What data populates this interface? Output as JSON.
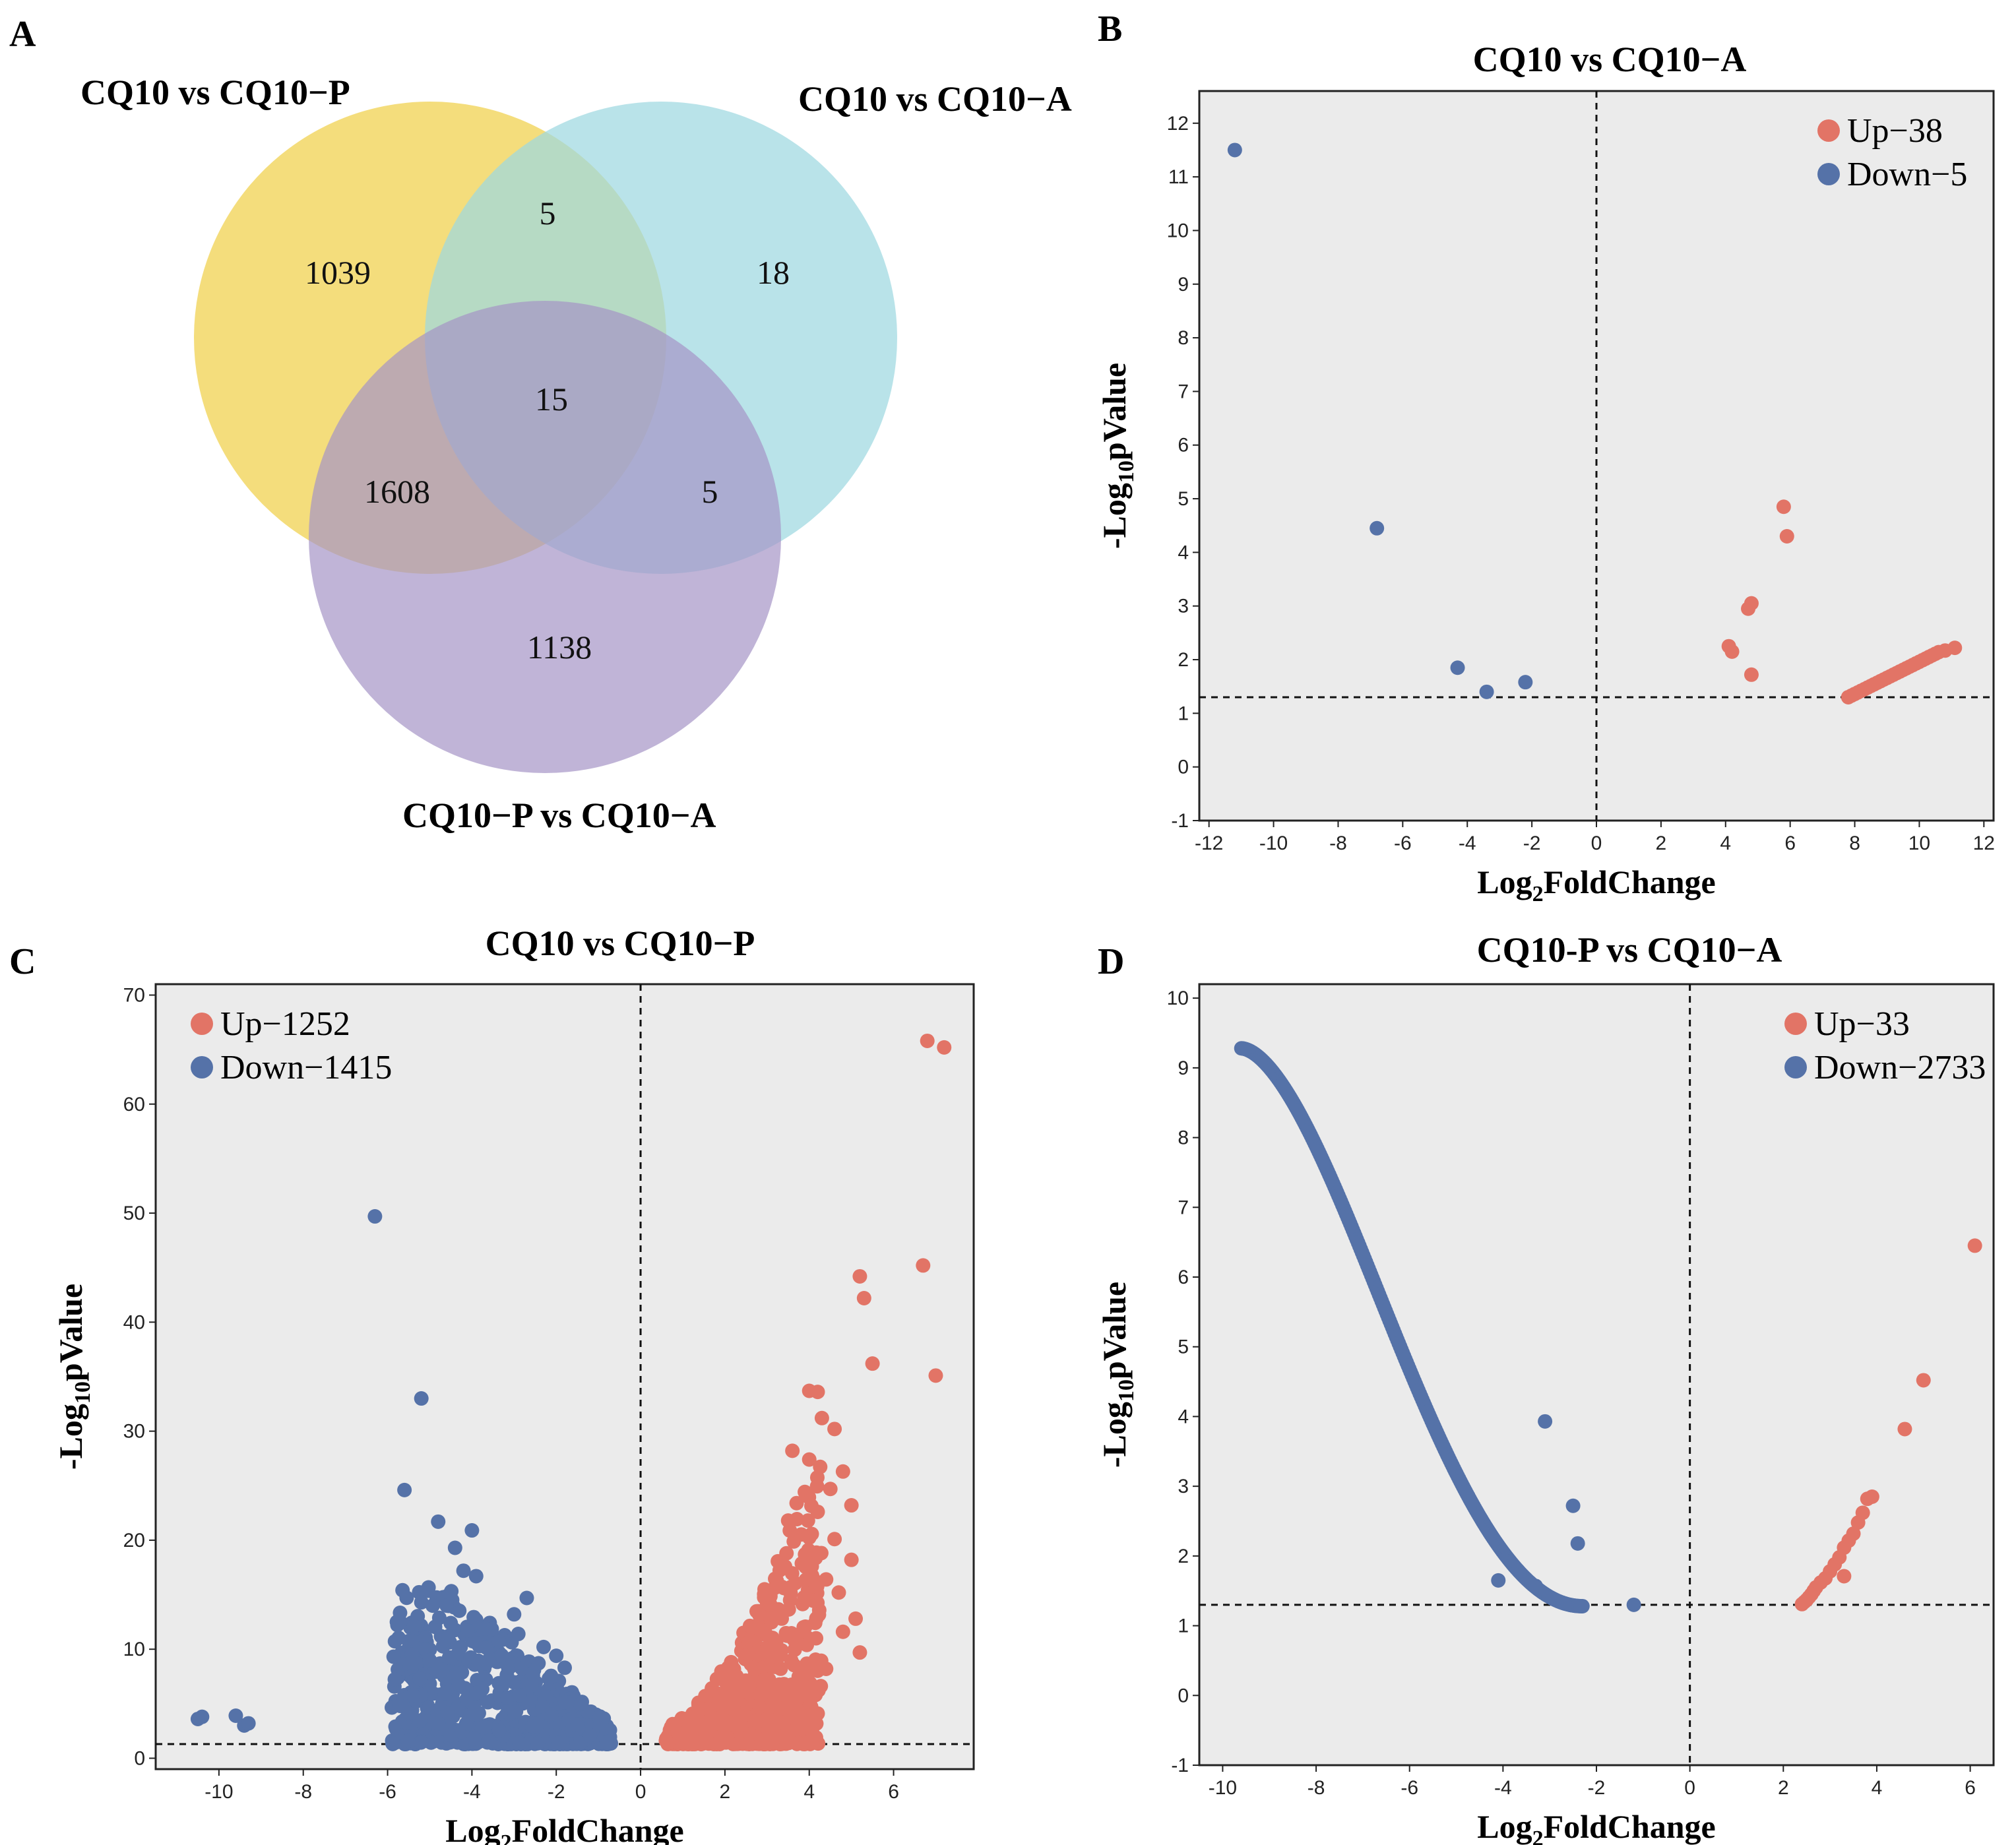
{
  "colors": {
    "up": "#E27466",
    "down": "#5572A8",
    "plot_bg": "#EBEBEB",
    "venn_yellow": "#F2D765",
    "venn_cyan": "#9ED8E0",
    "venn_purple": "#A594C6"
  },
  "panels": {
    "a": {
      "letter": "A"
    },
    "b": {
      "letter": "B"
    },
    "c": {
      "letter": "C"
    },
    "d": {
      "letter": "D"
    }
  },
  "venn": {
    "set_p": "CQ10 vs CQ10−P",
    "set_a": "CQ10 vs CQ10−A",
    "set_pa": "CQ10−P vs CQ10−A",
    "regions": {
      "only_p": "1039",
      "p_and_a": "5",
      "only_a": "18",
      "all": "15",
      "p_and_pa": "1608",
      "a_and_pa": "5",
      "only_pa": "1138"
    }
  },
  "axis": {
    "ylabel_main": "-Log",
    "ylabel_sub": "10",
    "ylabel_tail": "pValue",
    "xlabel_main": "Log",
    "xlabel_sub": "2",
    "xlabel_tail": "FoldChange"
  },
  "chart_data": [
    {
      "id": "b",
      "type": "scatter",
      "title": "CQ10 vs CQ10−A",
      "xlabel": "Log2FoldChange",
      "ylabel": "-Log10pValue",
      "xlim": [
        -12.3,
        12.3
      ],
      "ylim": [
        -1,
        12.6
      ],
      "xticks": [
        -12,
        -10,
        -8,
        -6,
        -4,
        -2,
        0,
        2,
        4,
        6,
        8,
        10,
        12
      ],
      "yticks": [
        -1,
        0,
        1,
        2,
        3,
        4,
        5,
        6,
        7,
        8,
        9,
        10,
        11,
        12
      ],
      "threshold_x": 0,
      "threshold_y": 1.3,
      "legend_position": "top-right",
      "series": [
        {
          "name": "Up−38",
          "color": "#E27466",
          "points": [
            [
              5.8,
              4.85
            ],
            [
              5.9,
              4.3
            ],
            [
              4.8,
              3.05
            ],
            [
              4.7,
              2.95
            ],
            [
              4.1,
              2.25
            ],
            [
              4.2,
              2.15
            ],
            [
              4.8,
              1.72
            ],
            [
              7.8,
              1.3
            ],
            [
              7.9,
              1.33
            ],
            [
              8.0,
              1.36
            ],
            [
              8.1,
              1.39
            ],
            [
              8.2,
              1.42
            ],
            [
              8.3,
              1.45
            ],
            [
              8.4,
              1.48
            ],
            [
              8.5,
              1.51
            ],
            [
              8.6,
              1.54
            ],
            [
              8.7,
              1.57
            ],
            [
              8.8,
              1.6
            ],
            [
              8.9,
              1.63
            ],
            [
              9.0,
              1.66
            ],
            [
              9.1,
              1.69
            ],
            [
              9.2,
              1.72
            ],
            [
              9.3,
              1.75
            ],
            [
              9.4,
              1.78
            ],
            [
              9.5,
              1.81
            ],
            [
              9.6,
              1.84
            ],
            [
              9.7,
              1.87
            ],
            [
              9.8,
              1.9
            ],
            [
              9.9,
              1.93
            ],
            [
              10.0,
              1.96
            ],
            [
              10.1,
              1.99
            ],
            [
              10.2,
              2.02
            ],
            [
              10.3,
              2.05
            ],
            [
              10.4,
              2.08
            ],
            [
              10.5,
              2.11
            ],
            [
              10.6,
              2.14
            ],
            [
              10.8,
              2.17
            ],
            [
              11.1,
              2.22
            ]
          ]
        },
        {
          "name": "Down−5",
          "color": "#5572A8",
          "points": [
            [
              -11.2,
              11.5
            ],
            [
              -6.8,
              4.45
            ],
            [
              -4.3,
              1.85
            ],
            [
              -3.4,
              1.4
            ],
            [
              -2.2,
              1.58
            ]
          ]
        }
      ]
    },
    {
      "id": "c",
      "type": "scatter",
      "title": "CQ10 vs CQ10−P",
      "xlabel": "Log2FoldChange",
      "ylabel": "-Log10pValue",
      "xlim": [
        -11.5,
        7.9
      ],
      "ylim": [
        -1,
        71
      ],
      "xticks": [
        -10,
        -8,
        -6,
        -4,
        -2,
        0,
        2,
        4,
        6
      ],
      "yticks": [
        0,
        10,
        20,
        30,
        40,
        50,
        60,
        70
      ],
      "threshold_x": 0,
      "threshold_y": 1.3,
      "legend_position": "top-left",
      "series": [
        {
          "name": "Up−1252",
          "color": "#E27466",
          "cluster_x": [
            0.6,
            4.4
          ],
          "cluster_y_max_at_x": [
            [
              0.6,
              2
            ],
            [
              2,
              10
            ],
            [
              3,
              22
            ],
            [
              4,
              32
            ]
          ],
          "points": [
            [
              6.8,
              65.8
            ],
            [
              7.2,
              65.2
            ],
            [
              6.7,
              45.2
            ],
            [
              5.2,
              44.2
            ],
            [
              5.3,
              42.2
            ],
            [
              5.5,
              36.2
            ],
            [
              7.0,
              35.1
            ],
            [
              4.0,
              33.7
            ],
            [
              4.2,
              33.6
            ],
            [
              4.3,
              31.2
            ],
            [
              4.6,
              30.2
            ],
            [
              3.6,
              28.2
            ],
            [
              4.0,
              27.4
            ],
            [
              4.8,
              26.3
            ],
            [
              4.5,
              24.7
            ],
            [
              3.7,
              23.4
            ],
            [
              4.2,
              22.6
            ],
            [
              5.0,
              23.2
            ],
            [
              3.5,
              21.8
            ],
            [
              4.6,
              20.1
            ],
            [
              5.0,
              18.2
            ],
            [
              3.9,
              18.7
            ],
            [
              4.4,
              16.4
            ],
            [
              4.7,
              15.2
            ],
            [
              5.1,
              12.8
            ],
            [
              4.8,
              11.6
            ],
            [
              5.2,
              9.7
            ],
            [
              4.4,
              8.2
            ],
            [
              4.0,
              5.6
            ],
            [
              4.2,
              4.1
            ],
            [
              3.4,
              6.8
            ],
            [
              3.0,
              14.2
            ],
            [
              2.8,
              11.9
            ],
            [
              2.5,
              9.4
            ],
            [
              2.2,
              7.5
            ],
            [
              1.9,
              5.6
            ],
            [
              1.6,
              4.5
            ],
            [
              1.2,
              3.3
            ],
            [
              0.9,
              2.3
            ],
            [
              0.6,
              1.6
            ],
            [
              2.6,
              2.2
            ],
            [
              1.4,
              1.4
            ]
          ]
        },
        {
          "name": "Down−1415",
          "color": "#5572A8",
          "cluster_x": [
            -6,
            -0.6
          ],
          "points": [
            [
              -6.3,
              49.7
            ],
            [
              -5.2,
              33.0
            ],
            [
              -5.6,
              24.6
            ],
            [
              -4.8,
              21.7
            ],
            [
              -4.0,
              20.9
            ],
            [
              -4.4,
              19.3
            ],
            [
              -4.2,
              17.2
            ],
            [
              -3.9,
              16.7
            ],
            [
              -5.2,
              14.3
            ],
            [
              -2.7,
              14.7
            ],
            [
              -4.6,
              14.0
            ],
            [
              -3.0,
              13.2
            ],
            [
              -2.9,
              11.4
            ],
            [
              -4.1,
              11.7
            ],
            [
              -3.7,
              11.9
            ],
            [
              -2.3,
              10.2
            ],
            [
              -5.1,
              10.0
            ],
            [
              -5.0,
              9.0
            ],
            [
              -2.0,
              9.4
            ],
            [
              -1.8,
              8.3
            ],
            [
              -4.7,
              8.1
            ],
            [
              -5.2,
              5.8
            ],
            [
              -5.4,
              5.8
            ],
            [
              -5.7,
              4.8
            ],
            [
              -5.5,
              4.1
            ],
            [
              -4.8,
              3.2
            ],
            [
              -10.4,
              3.8
            ],
            [
              -10.5,
              3.6
            ],
            [
              -9.6,
              3.9
            ],
            [
              -9.4,
              3.0
            ],
            [
              -9.3,
              3.2
            ],
            [
              -1.2,
              2.1
            ],
            [
              -0.8,
              1.5
            ],
            [
              -1.5,
              3.1
            ]
          ]
        }
      ]
    },
    {
      "id": "d",
      "type": "scatter",
      "title": "CQ10-P vs CQ10−A",
      "xlabel": "Log2FoldChange",
      "ylabel": "-Log10pValue",
      "xlim": [
        -10.5,
        6.5
      ],
      "ylim": [
        -1,
        10.2
      ],
      "xticks": [
        -10,
        -8,
        -6,
        -4,
        -2,
        0,
        2,
        4,
        6
      ],
      "yticks": [
        -1,
        0,
        1,
        2,
        3,
        4,
        5,
        6,
        7,
        8,
        9,
        10
      ],
      "threshold_x": 0,
      "threshold_y": 1.3,
      "legend_position": "top-right",
      "series": [
        {
          "name": "Up−33",
          "color": "#E27466",
          "points": [
            [
              6.1,
              6.45
            ],
            [
              5.0,
              4.52
            ],
            [
              4.6,
              3.82
            ],
            [
              3.9,
              2.85
            ],
            [
              3.8,
              2.82
            ],
            [
              3.7,
              2.62
            ],
            [
              3.6,
              2.48
            ],
            [
              3.5,
              2.32
            ],
            [
              3.4,
              2.22
            ],
            [
              3.3,
              2.12
            ],
            [
              3.2,
              1.98
            ],
            [
              3.1,
              1.88
            ],
            [
              3.0,
              1.78
            ],
            [
              3.3,
              1.71
            ],
            [
              2.9,
              1.68
            ],
            [
              2.8,
              1.62
            ],
            [
              2.7,
              1.55
            ],
            [
              2.65,
              1.5
            ],
            [
              2.6,
              1.45
            ],
            [
              2.55,
              1.41
            ],
            [
              2.5,
              1.37
            ],
            [
              2.45,
              1.34
            ],
            [
              2.4,
              1.31
            ]
          ]
        },
        {
          "name": "Down−2733",
          "color": "#5572A8",
          "curve": {
            "from": -9.6,
            "to": -2.3
          },
          "points": [
            [
              -3.1,
              3.93
            ],
            [
              -2.5,
              2.72
            ],
            [
              -2.4,
              2.18
            ],
            [
              -4.1,
              1.65
            ],
            [
              -3.3,
              1.57
            ],
            [
              -1.2,
              1.3
            ]
          ]
        }
      ]
    }
  ]
}
